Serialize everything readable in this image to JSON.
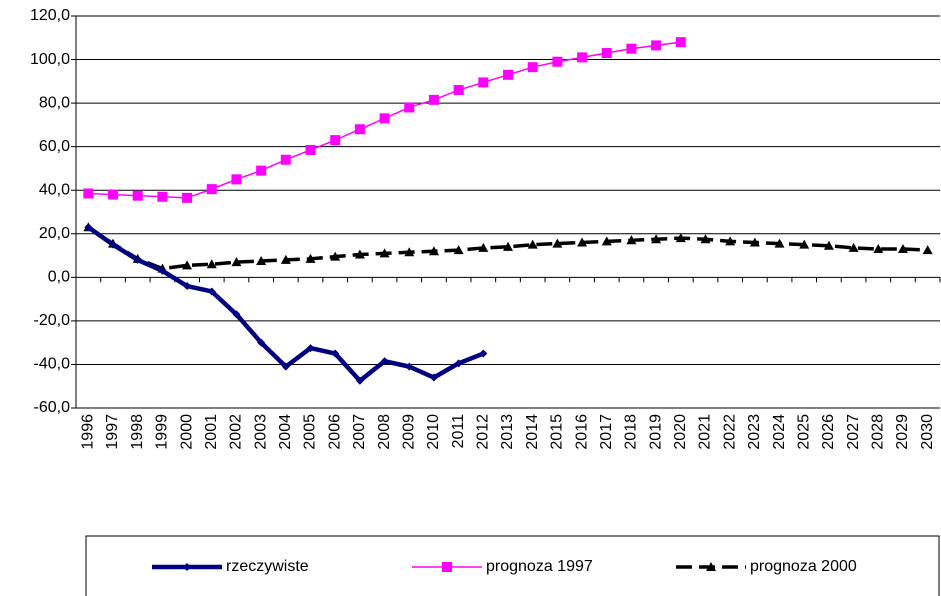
{
  "chart_data": {
    "type": "line",
    "categories": [
      "1996",
      "1997",
      "1998",
      "1999",
      "2000",
      "2001",
      "2002",
      "2003",
      "2004",
      "2005",
      "2006",
      "2007",
      "2008",
      "2009",
      "2010",
      "2011",
      "2012",
      "2013",
      "2014",
      "2015",
      "2016",
      "2017",
      "2018",
      "2019",
      "2020",
      "2021",
      "2022",
      "2023",
      "2024",
      "2025",
      "2026",
      "2027",
      "2028",
      "2029",
      "2030"
    ],
    "series": [
      {
        "name": "rzeczywiste",
        "color": "#000080",
        "marker": "diamond",
        "dashed": false,
        "values": [
          23,
          15,
          8,
          3,
          -4,
          -6.5,
          -17,
          -30,
          -41,
          -32.5,
          -35,
          -47.5,
          -38.5,
          -41,
          -46,
          -39.5,
          -35,
          null,
          null,
          null,
          null,
          null,
          null,
          null,
          null,
          null,
          null,
          null,
          null,
          null,
          null,
          null,
          null,
          null,
          null
        ]
      },
      {
        "name": "prognoza 1997",
        "color": "#ff00ff",
        "marker": "square",
        "dashed": false,
        "values": [
          38.5,
          38,
          37.5,
          37,
          36.5,
          40.5,
          45,
          49,
          54,
          58.5,
          63,
          68,
          73,
          78,
          81.5,
          86,
          89.5,
          93,
          96.5,
          99,
          101,
          103,
          105,
          106.5,
          108,
          null,
          null,
          null,
          null,
          null,
          null,
          null,
          null,
          null,
          null
        ]
      },
      {
        "name": "prognoza 2000",
        "color": "#000000",
        "marker": "triangle",
        "dashed": true,
        "values": [
          23,
          15.5,
          8.5,
          4,
          5.5,
          6,
          7,
          7.5,
          8,
          8.5,
          9.5,
          10.5,
          11,
          11.5,
          12,
          12.5,
          13.5,
          14,
          15,
          15.5,
          16,
          16.5,
          17,
          17.5,
          18,
          17.5,
          16.5,
          16,
          15.5,
          15,
          14.5,
          13.5,
          13,
          13,
          12.5
        ]
      }
    ],
    "ylim": [
      -60,
      120
    ],
    "yticks": [
      {
        "value": -60,
        "label": "-60,0"
      },
      {
        "value": -40,
        "label": "-40,0"
      },
      {
        "value": -20,
        "label": "-20,0"
      },
      {
        "value": 0,
        "label": "0,0"
      },
      {
        "value": 20,
        "label": "20,0"
      },
      {
        "value": 40,
        "label": "40,0"
      },
      {
        "value": 60,
        "label": "60,0"
      },
      {
        "value": 80,
        "label": "80,0"
      },
      {
        "value": 100,
        "label": "100,0"
      },
      {
        "value": 120,
        "label": "120,0"
      }
    ],
    "grid": true,
    "legend": "bottom"
  }
}
